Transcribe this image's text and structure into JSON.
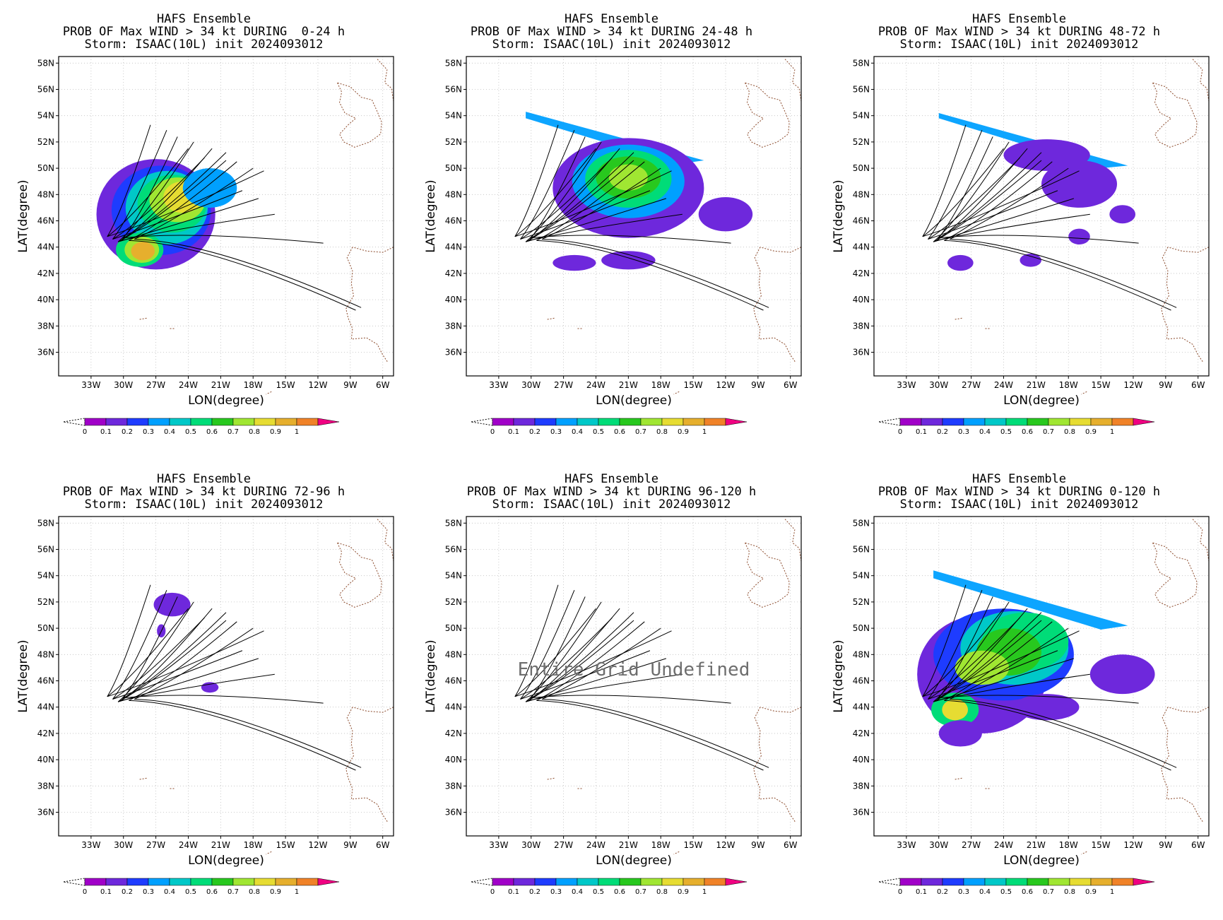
{
  "panels": [
    {
      "title": "HAFS Ensemble",
      "subtitle": "PROB OF Max WIND > 34 kt DURING  0-24 h",
      "storm": "Storm: ISAAC(10L) init 2024093012",
      "note": ""
    },
    {
      "title": "HAFS Ensemble",
      "subtitle": "PROB OF Max WIND > 34 kt DURING 24-48 h",
      "storm": "Storm: ISAAC(10L) init 2024093012",
      "note": ""
    },
    {
      "title": "HAFS Ensemble",
      "subtitle": "PROB OF Max WIND > 34 kt DURING 48-72 h",
      "storm": "Storm: ISAAC(10L) init 2024093012",
      "note": ""
    },
    {
      "title": "HAFS Ensemble",
      "subtitle": "PROB OF Max WIND > 34 kt DURING 72-96 h",
      "storm": "Storm: ISAAC(10L) init 2024093012",
      "note": ""
    },
    {
      "title": "HAFS Ensemble",
      "subtitle": "PROB OF Max WIND > 34 kt DURING 96-120 h",
      "storm": "Storm: ISAAC(10L) init 2024093012",
      "note": "Entire Grid Undefined"
    },
    {
      "title": "HAFS Ensemble",
      "subtitle": "PROB OF Max WIND > 34 kt DURING 0-120 h",
      "storm": "Storm: ISAAC(10L) init 2024093012",
      "note": ""
    }
  ],
  "axes": {
    "xlabel": "LON(degree)",
    "ylabel": "LAT(degree)",
    "xticks": [
      "33W",
      "30W",
      "27W",
      "24W",
      "21W",
      "18W",
      "15W",
      "12W",
      "9W",
      "6W"
    ],
    "yticks": [
      "58N",
      "56N",
      "54N",
      "52N",
      "50N",
      "48N",
      "46N",
      "44N",
      "42N",
      "40N",
      "38N",
      "36N"
    ]
  },
  "colorbar": {
    "labels": [
      "0",
      "0.1",
      "0.2",
      "0.3",
      "0.4",
      "0.5",
      "0.6",
      "0.7",
      "0.8",
      "0.9",
      "1"
    ],
    "colors": [
      "#a000c8",
      "#6e28dc",
      "#1e3cff",
      "#00a0ff",
      "#00c8c8",
      "#00dc78",
      "#28c81e",
      "#a0e632",
      "#e6dc32",
      "#e6af2d",
      "#f08228",
      "#fa3c3c",
      "#f00082"
    ]
  },
  "chart_data": [
    {
      "type": "map",
      "title": "HAFS Ensemble",
      "subtitle": "PROB OF Max WIND > 34 kt DURING  0-24 h",
      "xlabel": "LON(degree)",
      "ylabel": "LAT(degree)",
      "xlim": [
        -36,
        -5
      ],
      "ylim": [
        34.2,
        58.5
      ],
      "peak_probability": 0.85,
      "peak_location": [
        -28,
        43.8
      ]
    },
    {
      "type": "map",
      "title": "HAFS Ensemble",
      "subtitle": "PROB OF Max WIND > 34 kt DURING 24-48 h",
      "xlabel": "LON(degree)",
      "ylabel": "LAT(degree)",
      "xlim": [
        -36,
        -5
      ],
      "ylim": [
        34.2,
        58.5
      ],
      "peak_probability": 0.75,
      "peak_location": [
        -21,
        49.2
      ]
    },
    {
      "type": "map",
      "title": "HAFS Ensemble",
      "subtitle": "PROB OF Max WIND > 34 kt DURING 48-72 h",
      "xlabel": "LON(degree)",
      "ylabel": "LAT(degree)",
      "xlim": [
        -36,
        -5
      ],
      "ylim": [
        34.2,
        58.5
      ],
      "peak_probability": 0.35,
      "peak_location": [
        -20,
        51.5
      ]
    },
    {
      "type": "map",
      "title": "HAFS Ensemble",
      "subtitle": "PROB OF Max WIND > 34 kt DURING 72-96 h",
      "xlabel": "LON(degree)",
      "ylabel": "LAT(degree)",
      "xlim": [
        -36,
        -5
      ],
      "ylim": [
        34.2,
        58.5
      ],
      "peak_probability": 0.1,
      "peak_location": [
        -25.5,
        51.8
      ]
    },
    {
      "type": "map",
      "title": "HAFS Ensemble",
      "subtitle": "PROB OF Max WIND > 34 kt DURING 96-120 h",
      "xlabel": "LON(degree)",
      "ylabel": "LAT(degree)",
      "xlim": [
        -36,
        -5
      ],
      "ylim": [
        34.2,
        58.5
      ],
      "peak_probability": 0
    },
    {
      "type": "map",
      "title": "HAFS Ensemble",
      "subtitle": "PROB OF Max WIND > 34 kt DURING 0-120 h",
      "xlabel": "LON(degree)",
      "ylabel": "LAT(degree)",
      "xlim": [
        -36,
        -5
      ],
      "ylim": [
        34.2,
        58.5
      ],
      "peak_probability": 0.85,
      "peak_location": [
        -28.5,
        43.8
      ]
    }
  ]
}
